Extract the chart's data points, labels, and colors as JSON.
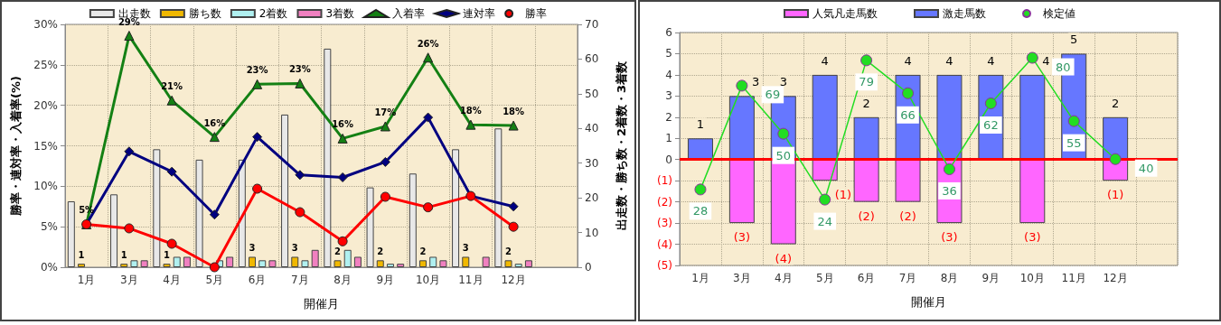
{
  "chart_data": [
    {
      "type": "bar",
      "xlabel": "開催月",
      "ylabel": "勝率・連対率・入着率(%)",
      "y2label": "出走数・勝ち数・2着数・3着数",
      "categories": [
        "1月",
        "3月",
        "4月",
        "5月",
        "6月",
        "7月",
        "8月",
        "9月",
        "10月",
        "11月",
        "12月",
        null
      ],
      "ylim": [
        0,
        30
      ],
      "yticks": [
        {
          "value": 0,
          "label": "0%"
        },
        {
          "value": 5,
          "label": "5%"
        },
        {
          "value": 10,
          "label": "10%"
        },
        {
          "value": 15,
          "label": "15%"
        },
        {
          "value": 20,
          "label": "20%"
        },
        {
          "value": 25,
          "label": "25%"
        },
        {
          "value": 30,
          "label": "30%"
        }
      ],
      "y2lim": [
        0,
        70
      ],
      "y2ticks": [
        0,
        10,
        20,
        30,
        40,
        50,
        60,
        70
      ],
      "grid": true,
      "legend": "top",
      "series": [
        {
          "name": "出走数",
          "axis": "y2",
          "color": "#e8e8e8",
          "values": [
            19,
            21,
            34,
            31,
            31,
            44,
            63,
            23,
            27,
            34,
            40,
            null
          ]
        },
        {
          "name": "勝ち数",
          "axis": "y2",
          "color": "#f0b800",
          "values": [
            1,
            1,
            1,
            0,
            3,
            3,
            2,
            2,
            2,
            3,
            2,
            null
          ],
          "value_labels": [
            "1",
            "1",
            "1",
            null,
            "3",
            "3",
            "2",
            "2",
            "2",
            "3",
            "2",
            null
          ]
        },
        {
          "name": "2着数",
          "axis": "y2",
          "color": "#b0f0f0",
          "values": [
            0,
            2,
            3,
            2,
            2,
            2,
            5,
            1,
            3,
            0,
            1,
            null
          ]
        },
        {
          "name": "3着数",
          "axis": "y2",
          "color": "#f080c0",
          "values": [
            0,
            2,
            3,
            3,
            2,
            5,
            3,
            1,
            2,
            3,
            2,
            null
          ]
        },
        {
          "name": "入着率",
          "type": "line",
          "marker": "triangle",
          "color": "#148014",
          "values": [
            5.3,
            28.6,
            20.6,
            16.1,
            22.6,
            22.7,
            15.9,
            17.4,
            25.9,
            17.6,
            17.5,
            null
          ],
          "value_labels": [
            "5%",
            "29%",
            "21%",
            "16%",
            "23%",
            "23%",
            "16%",
            "17%",
            "26%",
            "18%",
            "18%",
            null
          ]
        },
        {
          "name": "連対率",
          "type": "line",
          "marker": "diamond",
          "color": "#000080",
          "values": [
            5.3,
            14.3,
            11.8,
            6.5,
            16.1,
            11.4,
            11.1,
            13.0,
            18.5,
            8.8,
            7.5,
            null
          ]
        },
        {
          "name": "勝率",
          "type": "line",
          "marker": "circle",
          "color": "#ff0000",
          "values": [
            5.3,
            4.8,
            2.9,
            0,
            9.7,
            6.8,
            3.2,
            8.7,
            7.4,
            8.8,
            5.0,
            null
          ]
        }
      ]
    },
    {
      "type": "bar",
      "xlabel": "開催月",
      "stacked": true,
      "categories": [
        "1月",
        "3月",
        "4月",
        "5月",
        "6月",
        "7月",
        "8月",
        "9月",
        "10月",
        "11月",
        "12月",
        null
      ],
      "ylim": [
        -5,
        6
      ],
      "yticks": [
        {
          "value": -5,
          "label": "(5)"
        },
        {
          "value": -4,
          "label": "(4)"
        },
        {
          "value": -3,
          "label": "(3)"
        },
        {
          "value": -2,
          "label": "(2)"
        },
        {
          "value": -1,
          "label": "(1)"
        },
        0,
        1,
        2,
        3,
        4,
        5,
        6
      ],
      "y2lim": [
        -2,
        90
      ],
      "grid": true,
      "legend": "top",
      "ref_lines": [
        {
          "axis": "y",
          "value": 0,
          "color": "#ff0000"
        }
      ],
      "series": [
        {
          "name": "人気凡走馬数",
          "color": "#ff66ff",
          "values": [
            0,
            -3,
            -4,
            -1,
            -2,
            -2,
            -3,
            0,
            -3,
            0,
            -1,
            null
          ],
          "value_labels": [
            null,
            "(3)",
            "(4)",
            "(1)",
            "(2)",
            "(2)",
            "(3)",
            null,
            "(3)",
            null,
            "(1)",
            null
          ]
        },
        {
          "name": "激走馬数",
          "color": "#6677ff",
          "values": [
            1,
            3,
            3,
            4,
            2,
            4,
            4,
            4,
            4,
            5,
            2,
            null
          ],
          "value_labels": [
            "1",
            "3",
            "3",
            "4",
            "2",
            "4",
            "4",
            "4",
            "4",
            "5",
            "2",
            null
          ]
        },
        {
          "name": "検定値",
          "type": "line",
          "axis": "y2",
          "marker": "circle",
          "color": "#22dd22",
          "values": [
            28,
            69,
            50,
            24,
            79,
            66,
            36,
            62,
            80,
            55,
            40,
            null
          ],
          "value_labels": [
            "28",
            "69",
            "50",
            "24",
            "79",
            "66",
            "36",
            "62",
            "80",
            "55",
            "40",
            null
          ]
        }
      ]
    }
  ]
}
